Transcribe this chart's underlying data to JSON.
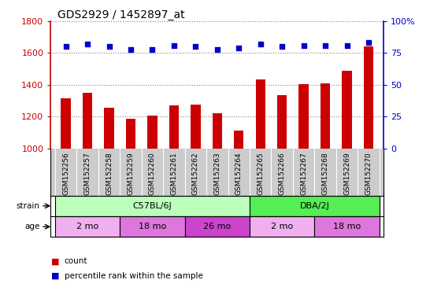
{
  "title": "GDS2929 / 1452897_at",
  "samples": [
    "GSM152256",
    "GSM152257",
    "GSM152258",
    "GSM152259",
    "GSM152260",
    "GSM152261",
    "GSM152262",
    "GSM152263",
    "GSM152264",
    "GSM152265",
    "GSM152266",
    "GSM152267",
    "GSM152268",
    "GSM152269",
    "GSM152270"
  ],
  "counts": [
    1315,
    1350,
    1255,
    1185,
    1205,
    1270,
    1275,
    1220,
    1115,
    1435,
    1335,
    1405,
    1410,
    1490,
    1640
  ],
  "percentile_ranks": [
    80,
    82,
    80,
    78,
    78,
    81,
    80,
    78,
    79,
    82,
    80,
    81,
    81,
    81,
    83
  ],
  "bar_color": "#cc0000",
  "dot_color": "#0000cc",
  "ylim_left": [
    1000,
    1800
  ],
  "ylim_right": [
    0,
    100
  ],
  "yticks_left": [
    1000,
    1200,
    1400,
    1600,
    1800
  ],
  "yticks_right": [
    0,
    25,
    50,
    75,
    100
  ],
  "strain_groups": [
    {
      "label": "C57BL/6J",
      "start": 0,
      "end": 9,
      "color": "#bbffbb"
    },
    {
      "label": "DBA/2J",
      "start": 9,
      "end": 15,
      "color": "#55ee55"
    }
  ],
  "age_groups": [
    {
      "label": "2 mo",
      "start": 0,
      "end": 3,
      "color": "#f0b0f0"
    },
    {
      "label": "18 mo",
      "start": 3,
      "end": 6,
      "color": "#dd77dd"
    },
    {
      "label": "26 mo",
      "start": 6,
      "end": 9,
      "color": "#cc44cc"
    },
    {
      "label": "2 mo",
      "start": 9,
      "end": 12,
      "color": "#f0b0f0"
    },
    {
      "label": "18 mo",
      "start": 12,
      "end": 15,
      "color": "#dd77dd"
    }
  ],
  "legend_items": [
    {
      "label": "count",
      "color": "#cc0000"
    },
    {
      "label": "percentile rank within the sample",
      "color": "#0000cc"
    }
  ],
  "left_color": "#cc0000",
  "right_color": "#0000cc",
  "xtick_bg": "#cccccc",
  "plot_bg": "#ffffff"
}
